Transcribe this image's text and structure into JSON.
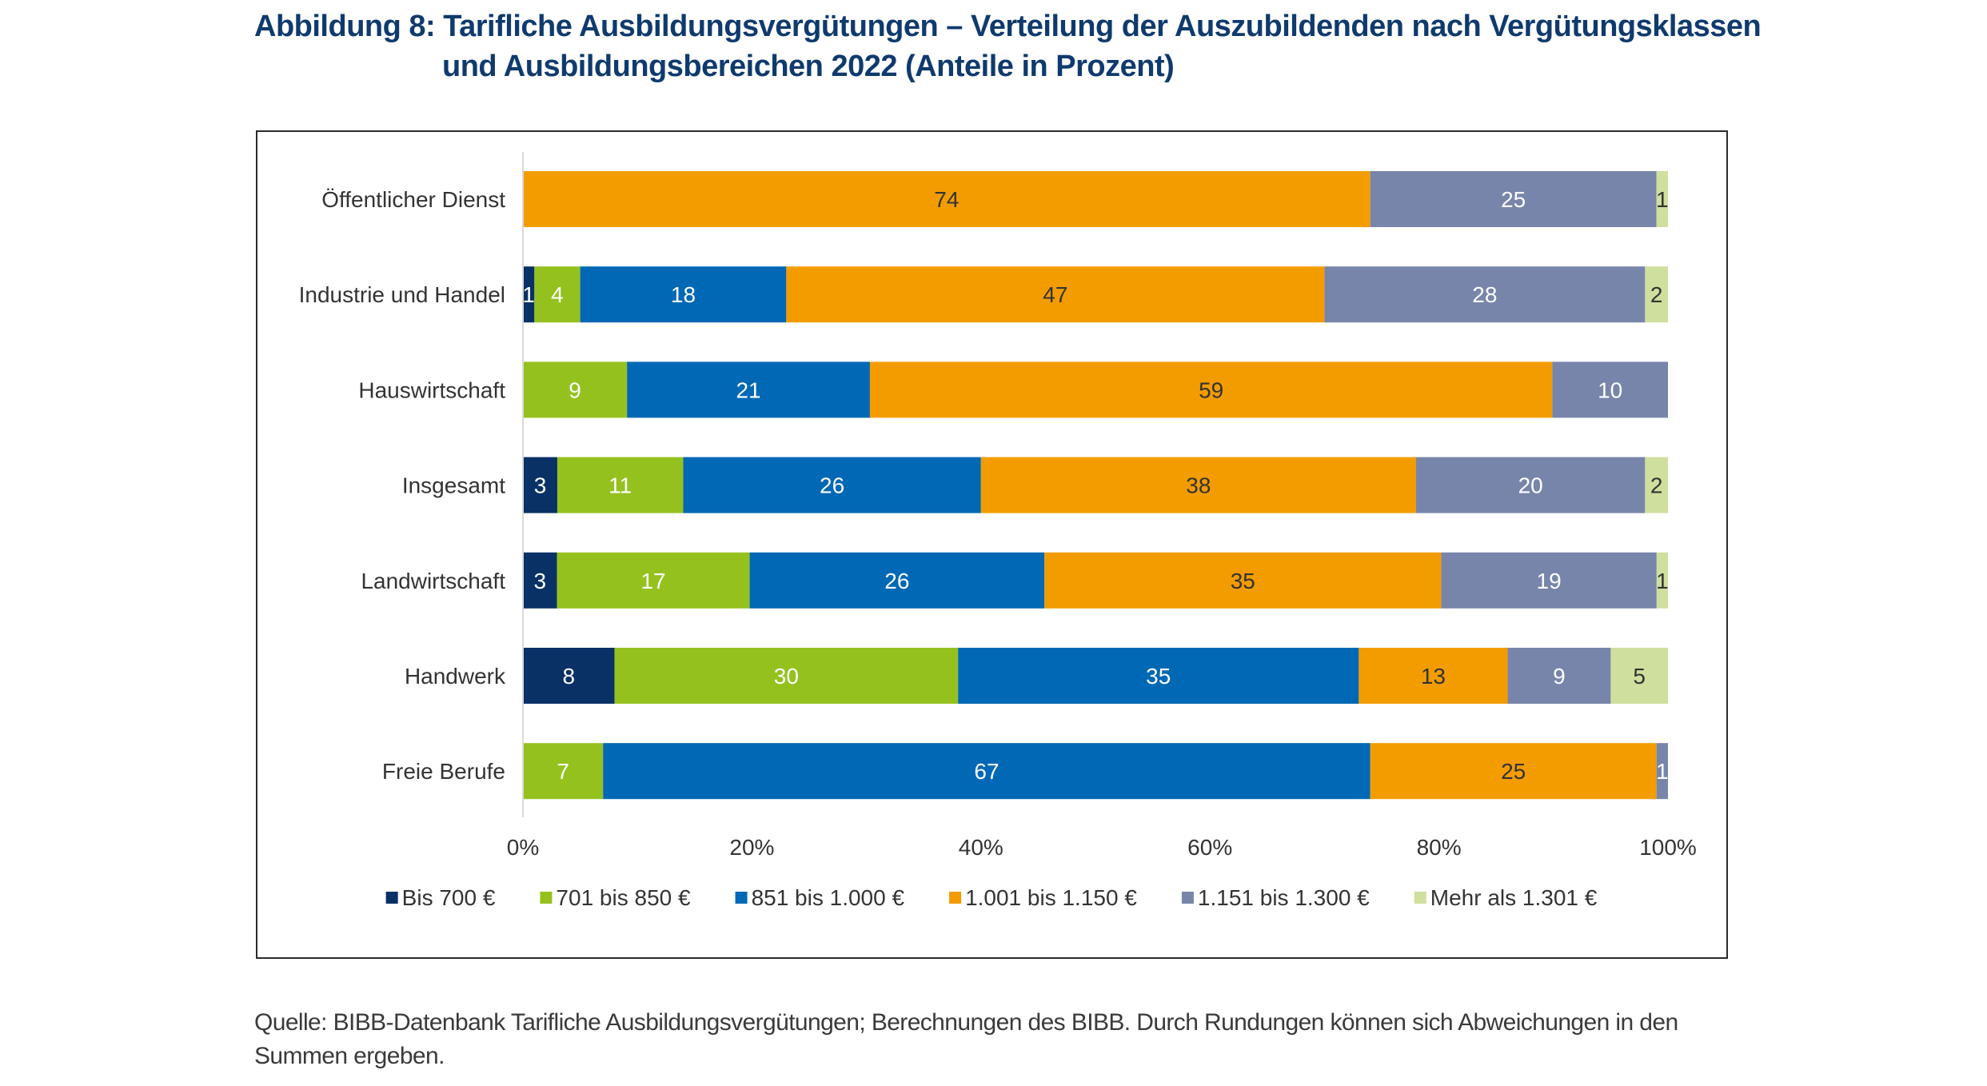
{
  "title": {
    "line1": "Abbildung 8: Tarifliche Ausbildungsvergütungen – Verteilung der Auszubildenden nach Vergütungsklassen",
    "line2": "und Ausbildungsbereichen 2022 (Anteile in Prozent)"
  },
  "source": {
    "line1": "Quelle: BIBB-Datenbank Tarifliche Ausbildungsvergütungen; Berechnungen des BIBB. Durch Rundungen können sich Abweichungen in den",
    "line2": "Summen ergeben."
  },
  "chart_data": {
    "type": "bar",
    "orientation": "horizontal",
    "stacked": "100%",
    "title": "Tarifliche Ausbildungsvergütungen – Verteilung der Auszubildenden nach Vergütungsklassen und Ausbildungsbereichen 2022 (Anteile in Prozent)",
    "xlabel": "",
    "ylabel": "",
    "xlim": [
      0,
      100
    ],
    "x_ticks": [
      "0%",
      "20%",
      "40%",
      "60%",
      "80%",
      "100%"
    ],
    "grid": false,
    "legend_position": "bottom",
    "categories": [
      "Öffentlicher Dienst",
      "Industrie und Handel",
      "Hauswirtschaft",
      "Insgesamt",
      "Landwirtschaft",
      "Handwerk",
      "Freie Berufe"
    ],
    "series": [
      {
        "name": "Bis 700 €",
        "color": "#0a3166",
        "label_color": "#ffffff",
        "values": [
          0,
          1,
          0,
          3,
          3,
          8,
          0
        ]
      },
      {
        "name": "701 bis 850 €",
        "color": "#95c11f",
        "label_color": "#ffffff",
        "values": [
          0,
          4,
          9,
          11,
          17,
          30,
          7
        ]
      },
      {
        "name": "851 bis 1.000 €",
        "color": "#0068b4",
        "label_color": "#ffffff",
        "values": [
          0,
          18,
          21,
          26,
          26,
          35,
          67
        ]
      },
      {
        "name": "1.001 bis 1.150 €",
        "color": "#f39c00",
        "label_color": "#333333",
        "values": [
          74,
          47,
          59,
          38,
          35,
          13,
          25
        ]
      },
      {
        "name": "1.151 bis 1.300 €",
        "color": "#7885ab",
        "label_color": "#ffffff",
        "values": [
          25,
          28,
          10,
          20,
          19,
          9,
          1
        ]
      },
      {
        "name": "Mehr als 1.301 €",
        "color": "#cfdf9d",
        "label_color": "#333333",
        "values": [
          1,
          2,
          0,
          2,
          1,
          5,
          0
        ]
      }
    ]
  }
}
